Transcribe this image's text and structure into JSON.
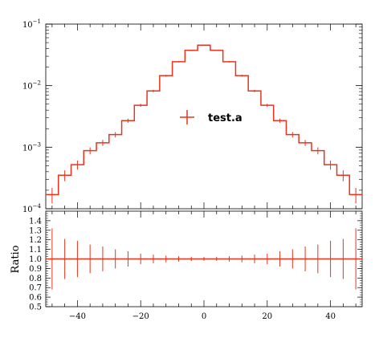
{
  "chart_data": [
    {
      "type": "line",
      "panel": "main",
      "scale": "log",
      "xlim": [
        -50,
        50
      ],
      "ylim": [
        0.0001,
        0.1
      ],
      "xlabel": "",
      "ylabel": "",
      "yticks": [
        {
          "base": "10",
          "exp": "−1",
          "value": 0.1
        },
        {
          "base": "10",
          "exp": "−2",
          "value": 0.01
        },
        {
          "base": "10",
          "exp": "−3",
          "value": 0.001
        },
        {
          "base": "10",
          "exp": "−4",
          "value": 0.0001
        }
      ],
      "legend": {
        "placement": "center",
        "label": "test.a"
      },
      "series": [
        {
          "name": "test.a",
          "color": "#e8341c",
          "bin_edges": [
            -50,
            -46,
            -42,
            -38,
            -34,
            -30,
            -26,
            -22,
            -18,
            -14,
            -10,
            -6,
            -2,
            2,
            6,
            10,
            14,
            18,
            22,
            26,
            30,
            34,
            38,
            42,
            46,
            50
          ],
          "values": [
            0.00017,
            0.00035,
            0.00052,
            0.00088,
            0.00118,
            0.0016,
            0.0027,
            0.0048,
            0.0082,
            0.0145,
            0.0245,
            0.0375,
            0.0455,
            0.0375,
            0.0245,
            0.0145,
            0.0082,
            0.0048,
            0.0027,
            0.0016,
            0.00118,
            0.00088,
            0.00052,
            0.00035,
            0.00017
          ],
          "errors_rel": [
            0.28,
            0.2,
            0.17,
            0.13,
            0.11,
            0.1,
            0.075,
            0.055,
            0.045,
            0.035,
            0.028,
            0.022,
            0.02,
            0.022,
            0.028,
            0.035,
            0.045,
            0.055,
            0.075,
            0.1,
            0.11,
            0.13,
            0.17,
            0.2,
            0.28
          ]
        }
      ]
    },
    {
      "type": "line",
      "panel": "ratio",
      "xlim": [
        -50,
        50
      ],
      "ylim": [
        0.5,
        1.5
      ],
      "xlabel": "",
      "ylabel": "Ratio",
      "xticks": [
        {
          "value": -40,
          "label": "−40"
        },
        {
          "value": -20,
          "label": "−20"
        },
        {
          "value": 0,
          "label": "0"
        },
        {
          "value": 20,
          "label": "20"
        },
        {
          "value": 40,
          "label": "40"
        }
      ],
      "yticks": [
        {
          "value": 0.5,
          "label": "0.5"
        },
        {
          "value": 0.6,
          "label": "0.6"
        },
        {
          "value": 0.7,
          "label": "0.7"
        },
        {
          "value": 0.8,
          "label": "0.8"
        },
        {
          "value": 0.9,
          "label": "0.9"
        },
        {
          "value": 1.0,
          "label": "1.0"
        },
        {
          "value": 1.1,
          "label": "1.1"
        },
        {
          "value": 1.2,
          "label": "1.2"
        },
        {
          "value": 1.3,
          "label": "1.3"
        },
        {
          "value": 1.4,
          "label": "1.4"
        }
      ],
      "series": [
        {
          "name": "test.a",
          "color": "#e8341c",
          "values": [
            1,
            1,
            1,
            1,
            1,
            1,
            1,
            1,
            1,
            1,
            1,
            1,
            1,
            1,
            1,
            1,
            1,
            1,
            1,
            1,
            1,
            1,
            1,
            1,
            1
          ],
          "errors": [
            0.32,
            0.21,
            0.19,
            0.15,
            0.13,
            0.1,
            0.08,
            0.055,
            0.045,
            0.035,
            0.028,
            0.022,
            0.02,
            0.022,
            0.028,
            0.035,
            0.045,
            0.055,
            0.08,
            0.1,
            0.13,
            0.15,
            0.19,
            0.21,
            0.32
          ]
        }
      ]
    }
  ]
}
